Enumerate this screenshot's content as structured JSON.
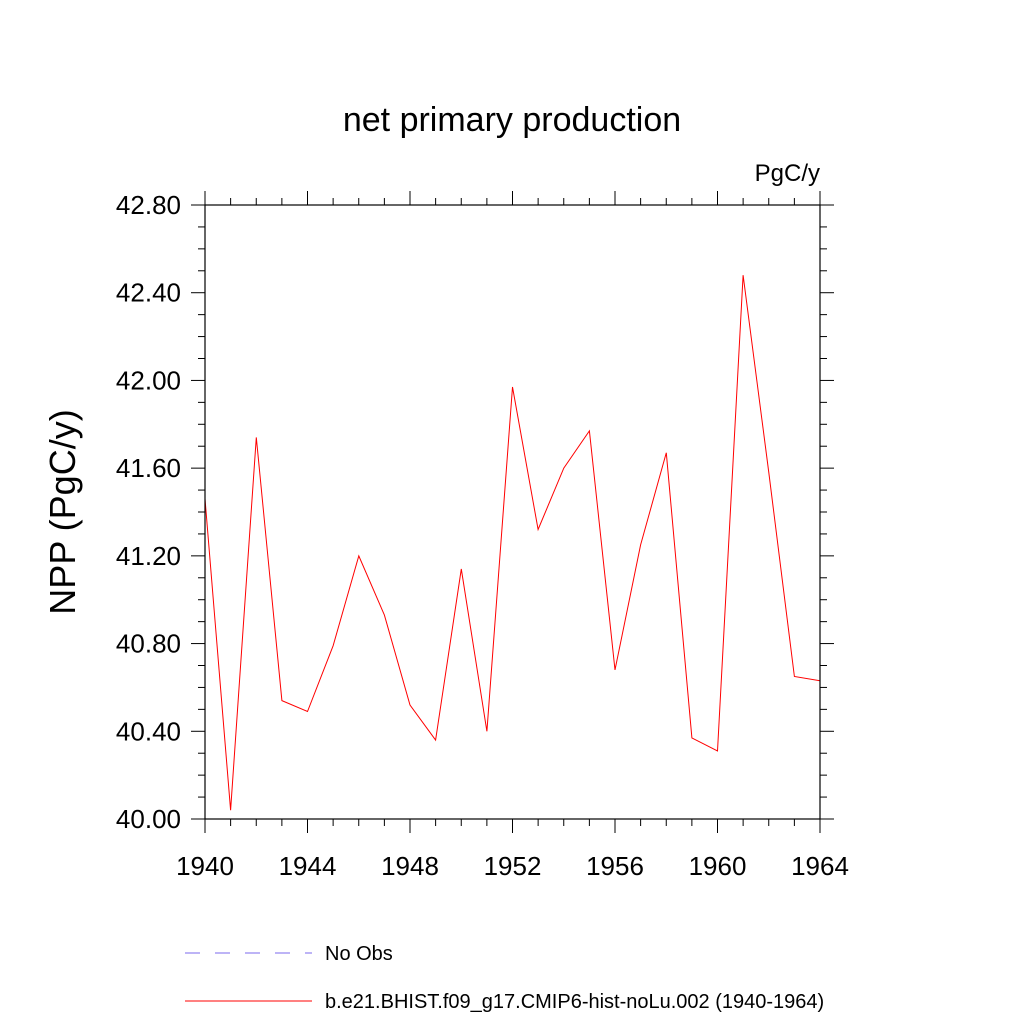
{
  "chart_data": {
    "type": "line",
    "title": "net primary production",
    "units": "PgC/y",
    "xlabel": "",
    "ylabel": "NPP  (PgC/y)",
    "xlim": [
      1940,
      1964
    ],
    "ylim": [
      40.0,
      42.8
    ],
    "xticks": [
      "1940",
      "1944",
      "1948",
      "1952",
      "1956",
      "1960",
      "1964"
    ],
    "yticks": [
      "40.00",
      "40.40",
      "40.80",
      "41.20",
      "41.60",
      "42.00",
      "42.40",
      "42.80"
    ],
    "x": [
      1940,
      1941,
      1942,
      1943,
      1944,
      1945,
      1946,
      1947,
      1948,
      1949,
      1950,
      1951,
      1952,
      1953,
      1954,
      1955,
      1956,
      1957,
      1958,
      1959,
      1960,
      1961,
      1962,
      1963,
      1964
    ],
    "series": [
      {
        "name": "b.e21.BHIST.f09_g17.CMIP6-hist-noLu.002 (1940-1964)",
        "color": "#ff0000",
        "style": "solid",
        "values": [
          41.46,
          40.04,
          41.74,
          40.54,
          40.49,
          40.79,
          41.2,
          40.93,
          40.52,
          40.36,
          41.14,
          40.4,
          41.97,
          41.32,
          41.6,
          41.77,
          40.68,
          41.25,
          41.67,
          40.37,
          40.31,
          42.48,
          41.58,
          40.65,
          40.63
        ]
      }
    ],
    "legend": {
      "placement": "bottom",
      "entries": [
        {
          "label": "No Obs",
          "color": "#7b68ee",
          "style": "dashed"
        },
        {
          "label": "b.e21.BHIST.f09_g17.CMIP6-hist-noLu.002 (1940-1964)",
          "color": "#ff0000",
          "style": "solid"
        }
      ]
    },
    "grid": false
  }
}
